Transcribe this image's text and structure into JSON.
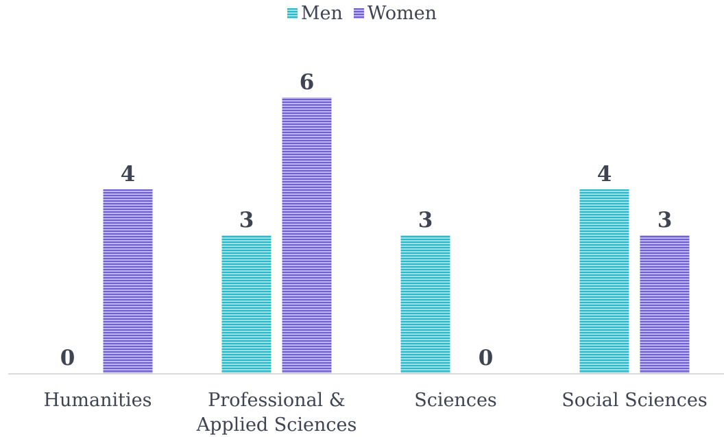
{
  "chart_data": {
    "type": "bar",
    "categories": [
      [
        "Humanities"
      ],
      [
        "Professional &",
        "Applied Sciences"
      ],
      [
        "Sciences"
      ],
      [
        "Social Sciences"
      ]
    ],
    "series": [
      {
        "name": "Men",
        "values": [
          0,
          3,
          3,
          4
        ],
        "color": "#2bb8c8"
      },
      {
        "name": "Women",
        "values": [
          4,
          6,
          0,
          3
        ],
        "color": "#6f5fce"
      }
    ],
    "ylim": [
      0,
      6
    ],
    "grid": false,
    "legend_position": "top",
    "data_labels": true,
    "bar_style": "horizontal-striped"
  }
}
